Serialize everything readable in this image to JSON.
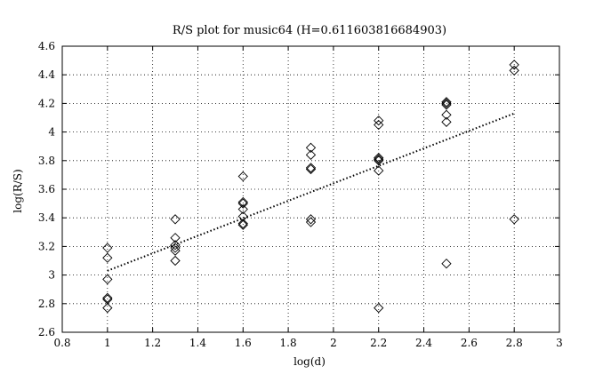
{
  "chart_data": {
    "type": "scatter",
    "title": "R/S plot for music64 (H=0.611603816684903)",
    "xlabel": "log(d)",
    "ylabel": "log(R/S)",
    "xlim": [
      0.8,
      3
    ],
    "ylim": [
      2.6,
      4.6
    ],
    "xticks": [
      0.8,
      1,
      1.2,
      1.4,
      1.6,
      1.8,
      2,
      2.2,
      2.4,
      2.6,
      2.8,
      3
    ],
    "yticks": [
      2.6,
      2.8,
      3,
      3.2,
      3.4,
      3.6,
      3.8,
      4,
      4.2,
      4.4,
      4.6
    ],
    "xtick_labels": [
      "0.8",
      "1",
      "1.2",
      "1.4",
      "1.6",
      "1.8",
      "2",
      "2.2",
      "2.4",
      "2.6",
      "2.8",
      "3"
    ],
    "ytick_labels": [
      "2.6",
      "2.8",
      "3",
      "3.2",
      "3.4",
      "3.6",
      "3.8",
      "4",
      "4.2",
      "4.4",
      "4.6"
    ],
    "grid": true,
    "marker": "diamond",
    "points": [
      [
        1.0,
        3.19
      ],
      [
        1.0,
        3.12
      ],
      [
        1.0,
        2.97
      ],
      [
        1.0,
        2.84
      ],
      [
        1.0,
        2.83
      ],
      [
        1.0,
        2.77
      ],
      [
        1.3,
        3.39
      ],
      [
        1.3,
        3.26
      ],
      [
        1.3,
        3.21
      ],
      [
        1.3,
        3.19
      ],
      [
        1.3,
        3.17
      ],
      [
        1.3,
        3.1
      ],
      [
        1.6,
        3.69
      ],
      [
        1.6,
        3.51
      ],
      [
        1.6,
        3.5
      ],
      [
        1.6,
        3.46
      ],
      [
        1.6,
        3.41
      ],
      [
        1.6,
        3.36
      ],
      [
        1.6,
        3.35
      ],
      [
        1.9,
        3.89
      ],
      [
        1.9,
        3.84
      ],
      [
        1.9,
        3.75
      ],
      [
        1.9,
        3.74
      ],
      [
        1.9,
        3.39
      ],
      [
        1.9,
        3.37
      ],
      [
        2.2,
        4.08
      ],
      [
        2.2,
        4.05
      ],
      [
        2.2,
        3.82
      ],
      [
        2.2,
        3.81
      ],
      [
        2.2,
        3.8
      ],
      [
        2.2,
        3.73
      ],
      [
        2.2,
        2.77
      ],
      [
        2.5,
        4.21
      ],
      [
        2.5,
        4.2
      ],
      [
        2.5,
        4.19
      ],
      [
        2.5,
        4.12
      ],
      [
        2.5,
        4.07
      ],
      [
        2.5,
        3.08
      ],
      [
        2.8,
        4.47
      ],
      [
        2.8,
        4.43
      ],
      [
        2.8,
        3.39
      ]
    ],
    "fit_line": {
      "style": "dotted",
      "x": [
        1.0,
        2.8
      ],
      "y": [
        3.03,
        4.13
      ]
    }
  }
}
